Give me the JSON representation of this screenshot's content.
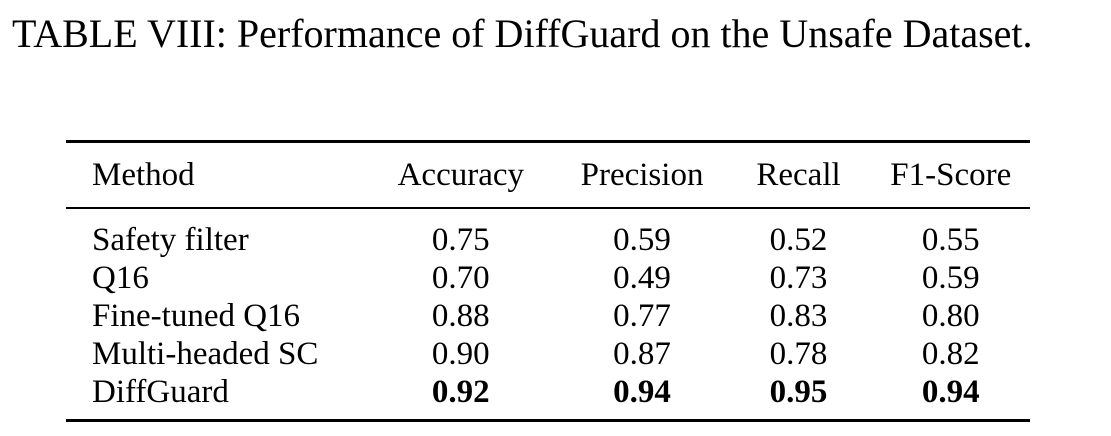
{
  "caption": "TABLE VIII: Performance of DiffGuard on the Unsafe Dataset.",
  "table": {
    "headers": [
      "Method",
      "Accuracy",
      "Precision",
      "Recall",
      "F1-Score"
    ],
    "rows": [
      {
        "method": "Safety filter",
        "accuracy": "0.75",
        "precision": "0.59",
        "recall": "0.52",
        "f1": "0.55"
      },
      {
        "method": "Q16",
        "accuracy": "0.70",
        "precision": "0.49",
        "recall": "0.73",
        "f1": "0.59"
      },
      {
        "method": "Fine-tuned Q16",
        "accuracy": "0.88",
        "precision": "0.77",
        "recall": "0.83",
        "f1": "0.80"
      },
      {
        "method": "Multi-headed SC",
        "accuracy": "0.90",
        "precision": "0.87",
        "recall": "0.78",
        "f1": "0.82"
      },
      {
        "method": "DiffGuard",
        "accuracy": "0.92",
        "precision": "0.94",
        "recall": "0.95",
        "f1": "0.94"
      }
    ]
  }
}
